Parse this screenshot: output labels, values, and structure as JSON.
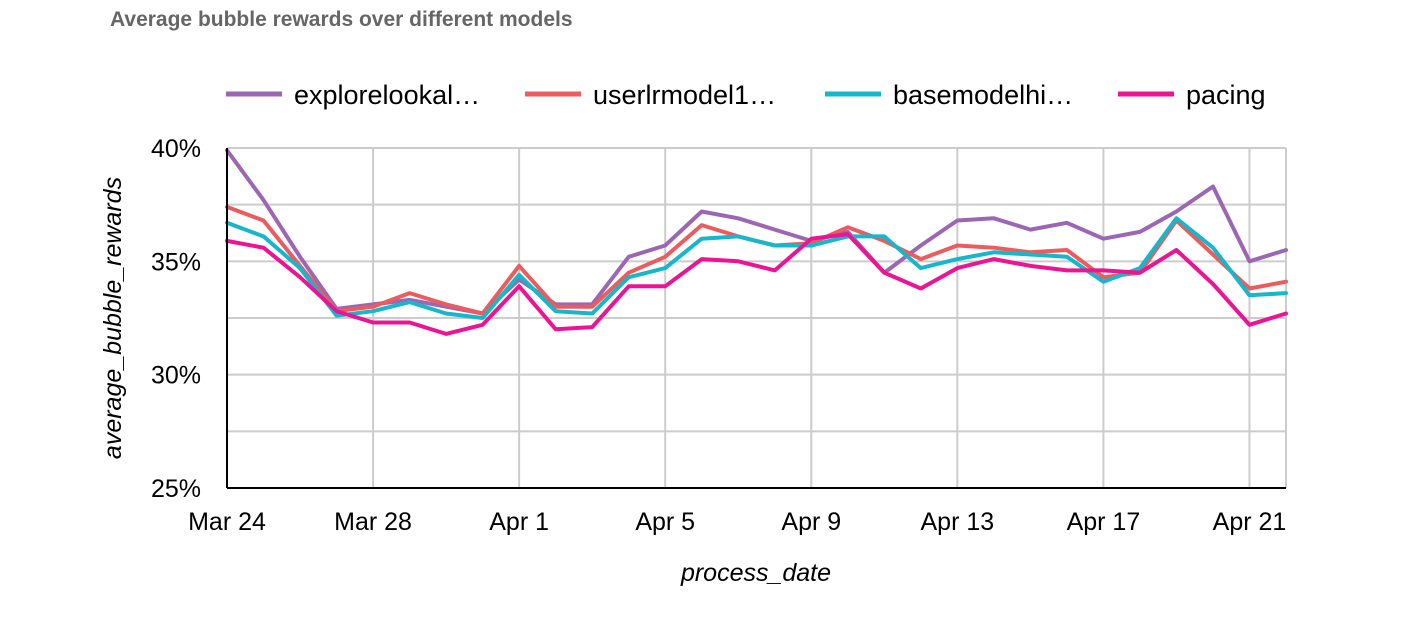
{
  "chart_data": {
    "type": "line",
    "title": "Average bubble rewards over different models",
    "xlabel": "process_date",
    "ylabel": "average_bubble_rewards",
    "ylim": [
      0.25,
      0.4
    ],
    "y_ticks": [
      {
        "value": 0.4,
        "label": "40%"
      },
      {
        "value": 0.35,
        "label": "35%"
      },
      {
        "value": 0.3,
        "label": "30%"
      },
      {
        "value": 0.25,
        "label": "25%"
      }
    ],
    "x_ticks": [
      {
        "index": 0,
        "label": "Mar 24"
      },
      {
        "index": 4,
        "label": "Mar 28"
      },
      {
        "index": 8,
        "label": "Apr 1"
      },
      {
        "index": 12,
        "label": "Apr 5"
      },
      {
        "index": 16,
        "label": "Apr 9"
      },
      {
        "index": 20,
        "label": "Apr 13"
      },
      {
        "index": 24,
        "label": "Apr 17"
      },
      {
        "index": 28,
        "label": "Apr 21"
      }
    ],
    "x": [
      "Mar 24",
      "Mar 25",
      "Mar 26",
      "Mar 27",
      "Mar 28",
      "Mar 29",
      "Mar 30",
      "Mar 31",
      "Apr 1",
      "Apr 2",
      "Apr 3",
      "Apr 4",
      "Apr 5",
      "Apr 6",
      "Apr 7",
      "Apr 8",
      "Apr 9",
      "Apr 10",
      "Apr 11",
      "Apr 12",
      "Apr 13",
      "Apr 14",
      "Apr 15",
      "Apr 16",
      "Apr 17",
      "Apr 18",
      "Apr 19",
      "Apr 20",
      "Apr 21",
      "Apr 22"
    ],
    "grid": true,
    "legend_position": "top",
    "series": [
      {
        "name": "explorelookal…",
        "color": "#9c66b4",
        "values": [
          0.399,
          0.377,
          0.352,
          0.329,
          0.331,
          0.333,
          0.33,
          0.327,
          0.342,
          0.331,
          0.331,
          0.352,
          0.357,
          0.372,
          0.369,
          0.364,
          0.359,
          0.363,
          0.345,
          0.357,
          0.368,
          0.369,
          0.364,
          0.367,
          0.36,
          0.363,
          0.372,
          0.383,
          0.35,
          0.355
        ]
      },
      {
        "name": "userlrmodel1…",
        "color": "#ec5c5e",
        "values": [
          0.374,
          0.368,
          0.348,
          0.328,
          0.33,
          0.336,
          0.331,
          0.327,
          0.348,
          0.33,
          0.33,
          0.345,
          0.352,
          0.366,
          0.361,
          0.357,
          0.358,
          0.365,
          0.359,
          0.351,
          0.357,
          0.356,
          0.354,
          0.355,
          0.343,
          0.345,
          0.368,
          0.353,
          0.338,
          0.341
        ]
      },
      {
        "name": "basemodelhi…",
        "color": "#16b7cb",
        "values": [
          0.367,
          0.361,
          0.347,
          0.326,
          0.328,
          0.332,
          0.327,
          0.325,
          0.344,
          0.328,
          0.327,
          0.343,
          0.347,
          0.36,
          0.361,
          0.357,
          0.357,
          0.361,
          0.361,
          0.347,
          0.351,
          0.354,
          0.353,
          0.352,
          0.341,
          0.347,
          0.369,
          0.356,
          0.335,
          0.336
        ]
      },
      {
        "name": "pacing",
        "color": "#ec1495",
        "values": [
          0.359,
          0.356,
          0.343,
          0.328,
          0.323,
          0.323,
          0.318,
          0.322,
          0.339,
          0.32,
          0.321,
          0.339,
          0.339,
          0.351,
          0.35,
          0.346,
          0.36,
          0.362,
          0.345,
          0.338,
          0.347,
          0.351,
          0.348,
          0.346,
          0.346,
          0.345,
          0.355,
          0.34,
          0.322,
          0.327
        ]
      }
    ]
  }
}
